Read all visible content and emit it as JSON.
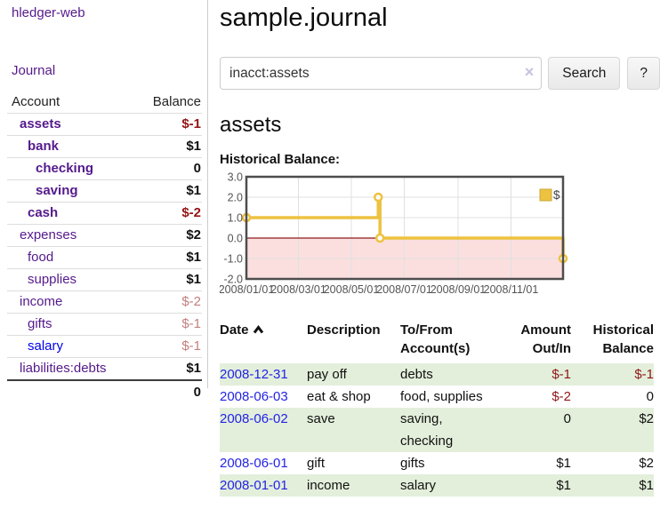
{
  "app": {
    "title": "hledger-web"
  },
  "colors": {
    "link_purple": "#551A8B",
    "link_blue": "#0000EE",
    "negative_strong": "#941414",
    "negative_soft": "#c47e7e",
    "row_green": "#e3efdb",
    "chart_gold": "#edc240",
    "chart_negative_fill": "#fbdfdf"
  },
  "sidebar": {
    "journal_link": "Journal",
    "header": {
      "account": "Account",
      "balance": "Balance"
    },
    "accounts": [
      {
        "name": "assets",
        "indent": 1,
        "bold": true,
        "balance": "$-1",
        "balance_style": "neg-strong",
        "link_color": "purple"
      },
      {
        "name": "bank",
        "indent": 2,
        "bold": true,
        "balance": "$1",
        "balance_style": "pos",
        "link_color": "purple"
      },
      {
        "name": "checking",
        "indent": 3,
        "bold": true,
        "balance": "0",
        "balance_style": "pos",
        "link_color": "purple"
      },
      {
        "name": "saving",
        "indent": 3,
        "bold": true,
        "balance": "$1",
        "balance_style": "pos",
        "link_color": "purple"
      },
      {
        "name": "cash",
        "indent": 2,
        "bold": true,
        "balance": "$-2",
        "balance_style": "neg-strong",
        "link_color": "purple"
      },
      {
        "name": "expenses",
        "indent": 1,
        "bold": false,
        "balance": "$2",
        "balance_style": "pos",
        "link_color": "purple"
      },
      {
        "name": "food",
        "indent": 2,
        "bold": false,
        "balance": "$1",
        "balance_style": "pos",
        "link_color": "purple"
      },
      {
        "name": "supplies",
        "indent": 2,
        "bold": false,
        "balance": "$1",
        "balance_style": "pos",
        "link_color": "purple"
      },
      {
        "name": "income",
        "indent": 1,
        "bold": false,
        "balance": "$-2",
        "balance_style": "neg-soft",
        "link_color": "purple"
      },
      {
        "name": "gifts",
        "indent": 2,
        "bold": false,
        "balance": "$-1",
        "balance_style": "neg-soft",
        "link_color": "purple"
      },
      {
        "name": "salary",
        "indent": 2,
        "bold": false,
        "balance": "$-1",
        "balance_style": "neg-soft",
        "link_color": "blue"
      },
      {
        "name": "liabilities:debts",
        "indent": 1,
        "bold": false,
        "balance": "$1",
        "balance_style": "pos",
        "link_color": "purple"
      }
    ],
    "total": "0"
  },
  "header": {
    "title": "sample.journal"
  },
  "search": {
    "value": "inacct:assets",
    "clear_glyph": "×",
    "button_label": "Search",
    "help_label": "?"
  },
  "account_page": {
    "title": "assets",
    "chart_label": "Historical Balance:"
  },
  "chart_data": {
    "type": "line",
    "title": "Historical Balance",
    "steps": true,
    "x_range": [
      "2008-01-01",
      "2008-12-31"
    ],
    "ylim": [
      -2,
      3
    ],
    "grid": true,
    "legend": {
      "label": "$",
      "position": "top-right"
    },
    "series": [
      {
        "name": "$",
        "color": "#edc240",
        "points": [
          {
            "date": "2008-01-01",
            "value": 1
          },
          {
            "date": "2008-06-01",
            "value": 2
          },
          {
            "date": "2008-06-03",
            "value": 0
          },
          {
            "date": "2008-12-31",
            "value": -1
          }
        ]
      }
    ],
    "x_ticks": [
      {
        "date": "2008-01-01",
        "label": "2008/01/01"
      },
      {
        "date": "2008-03-01",
        "label": "2008/03/01"
      },
      {
        "date": "2008-05-01",
        "label": "2008/05/01"
      },
      {
        "date": "2008-07-01",
        "label": "2008/07/01"
      },
      {
        "date": "2008-09-01",
        "label": "2008/09/01"
      },
      {
        "date": "2008-11-01",
        "label": "2008/11/01"
      }
    ],
    "y_ticks": [
      {
        "value": 3,
        "label": "3.0"
      },
      {
        "value": 2,
        "label": "2.0"
      },
      {
        "value": 1,
        "label": "1.0"
      },
      {
        "value": 0,
        "label": "0.0"
      },
      {
        "value": -1,
        "label": "-1.0"
      },
      {
        "value": -2,
        "label": "-2.0"
      }
    ],
    "zero_line_color": "#8b1a1a",
    "negative_region_fill": "#fbdfdf"
  },
  "register": {
    "headers": {
      "date": "Date",
      "description": "Description",
      "accounts_line1": "To/From",
      "accounts_line2": "Account(s)",
      "amount_line1": "Amount",
      "amount_line2": "Out/In",
      "balance_line1": "Historical",
      "balance_line2": "Balance"
    },
    "rows": [
      {
        "date": "2008-12-31",
        "description": "pay off",
        "accounts": "debts",
        "amount": "$-1",
        "amount_neg": true,
        "balance": "$-1",
        "balance_neg": true,
        "shade": true
      },
      {
        "date": "2008-06-03",
        "description": "eat & shop",
        "accounts": "food, supplies",
        "amount": "$-2",
        "amount_neg": true,
        "balance": "0",
        "balance_neg": false,
        "shade": false
      },
      {
        "date": "2008-06-02",
        "description": "save",
        "accounts": "saving, checking",
        "amount": "0",
        "amount_neg": false,
        "balance": "$2",
        "balance_neg": false,
        "shade": true
      },
      {
        "date": "2008-06-01",
        "description": "gift",
        "accounts": "gifts",
        "amount": "$1",
        "amount_neg": false,
        "balance": "$2",
        "balance_neg": false,
        "shade": false
      },
      {
        "date": "2008-01-01",
        "description": "income",
        "accounts": "salary",
        "amount": "$1",
        "amount_neg": false,
        "balance": "$1",
        "balance_neg": false,
        "shade": true
      }
    ]
  }
}
